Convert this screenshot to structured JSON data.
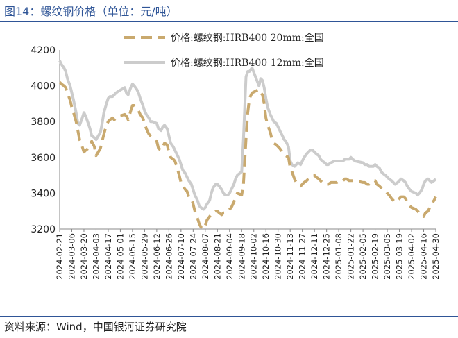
{
  "title": "图14：螺纹钢价格（单位：元/吨）",
  "source": "资料来源：Wind，中国银河证券研究院",
  "chart_data": {
    "type": "line",
    "ylim": [
      3200,
      4200
    ],
    "yticks": [
      3200,
      3400,
      3600,
      3800,
      4000,
      4200
    ],
    "xlim": [
      "2024-02-21",
      "2025-04-30"
    ],
    "xticks": [
      "2024-02-21",
      "2024-03-06",
      "2024-03-20",
      "2024-04-03",
      "2024-04-17",
      "2024-05-01",
      "2024-05-15",
      "2024-05-29",
      "2024-06-12",
      "2024-06-26",
      "2024-07-10",
      "2024-07-24",
      "2024-08-07",
      "2024-08-21",
      "2024-09-04",
      "2024-09-18",
      "2024-10-02",
      "2024-10-16",
      "2024-10-30",
      "2024-11-13",
      "2024-11-27",
      "2024-12-11",
      "2024-12-25",
      "2025-01-08",
      "2025-01-22",
      "2025-02-05",
      "2025-02-19",
      "2025-03-05",
      "2025-03-19",
      "2025-04-02",
      "2025-04-16",
      "2025-04-30"
    ],
    "legend_position": "top",
    "grid": false,
    "series": [
      {
        "name": "价格:螺纹钢:HRB400 20mm:全国",
        "color": "#c9a96e",
        "style": "dashed",
        "x": [
          "2024-02-21",
          "2024-02-23",
          "2024-02-26",
          "2024-02-28",
          "2024-03-01",
          "2024-03-04",
          "2024-03-06",
          "2024-03-08",
          "2024-03-11",
          "2024-03-13",
          "2024-03-15",
          "2024-03-18",
          "2024-03-20",
          "2024-03-22",
          "2024-03-25",
          "2024-03-27",
          "2024-03-29",
          "2024-04-01",
          "2024-04-03",
          "2024-04-08",
          "2024-04-10",
          "2024-04-12",
          "2024-04-15",
          "2024-04-17",
          "2024-04-19",
          "2024-04-22",
          "2024-04-24",
          "2024-04-26",
          "2024-04-29",
          "2024-05-06",
          "2024-05-08",
          "2024-05-10",
          "2024-05-13",
          "2024-05-15",
          "2024-05-17",
          "2024-05-20",
          "2024-05-22",
          "2024-05-24",
          "2024-05-27",
          "2024-05-29",
          "2024-05-31",
          "2024-06-03",
          "2024-06-05",
          "2024-06-07",
          "2024-06-12",
          "2024-06-14",
          "2024-06-17",
          "2024-06-19",
          "2024-06-21",
          "2024-06-24",
          "2024-06-26",
          "2024-06-28",
          "2024-07-01",
          "2024-07-03",
          "2024-07-05",
          "2024-07-08",
          "2024-07-10",
          "2024-07-12",
          "2024-07-15",
          "2024-07-17",
          "2024-07-19",
          "2024-07-22",
          "2024-07-24",
          "2024-07-26",
          "2024-07-29",
          "2024-07-31",
          "2024-08-02",
          "2024-08-05",
          "2024-08-07",
          "2024-08-09",
          "2024-08-12",
          "2024-08-14",
          "2024-08-16",
          "2024-08-19",
          "2024-08-21",
          "2024-08-23",
          "2024-08-26",
          "2024-08-28",
          "2024-08-30",
          "2024-09-02",
          "2024-09-04",
          "2024-09-06",
          "2024-09-09",
          "2024-09-11",
          "2024-09-13",
          "2024-09-18",
          "2024-09-20",
          "2024-09-23",
          "2024-09-25",
          "2024-09-27",
          "2024-09-30",
          "2024-10-08",
          "2024-10-10",
          "2024-10-12",
          "2024-10-14",
          "2024-10-16",
          "2024-10-18",
          "2024-10-21",
          "2024-10-23",
          "2024-10-25",
          "2024-10-28",
          "2024-10-30",
          "2024-11-01",
          "2024-11-04",
          "2024-11-06",
          "2024-11-08",
          "2024-11-11",
          "2024-11-13",
          "2024-11-15",
          "2024-11-18",
          "2024-11-20",
          "2024-11-22",
          "2024-11-25",
          "2024-11-27",
          "2024-11-29",
          "2024-12-02",
          "2024-12-04",
          "2024-12-06",
          "2024-12-09",
          "2024-12-11",
          "2024-12-13",
          "2024-12-16",
          "2024-12-18",
          "2024-12-20",
          "2024-12-23",
          "2024-12-25",
          "2024-12-27",
          "2024-12-30",
          "2025-01-03",
          "2025-01-06",
          "2025-01-08",
          "2025-01-10",
          "2025-01-13",
          "2025-01-15",
          "2025-01-17",
          "2025-01-20",
          "2025-01-22",
          "2025-01-24",
          "2025-01-27",
          "2025-02-05",
          "2025-02-07",
          "2025-02-10",
          "2025-02-12",
          "2025-02-14",
          "2025-02-17",
          "2025-02-19",
          "2025-02-21",
          "2025-02-24",
          "2025-02-26",
          "2025-02-28",
          "2025-03-03",
          "2025-03-05",
          "2025-03-07",
          "2025-03-10",
          "2025-03-12",
          "2025-03-14",
          "2025-03-17",
          "2025-03-19",
          "2025-03-21",
          "2025-03-24",
          "2025-03-26",
          "2025-03-28",
          "2025-03-31",
          "2025-04-02",
          "2025-04-07",
          "2025-04-09",
          "2025-04-11",
          "2025-04-14",
          "2025-04-16",
          "2025-04-18",
          "2025-04-21",
          "2025-04-23",
          "2025-04-25",
          "2025-04-28",
          "2025-04-30"
        ],
        "values": [
          4020,
          4010,
          4000,
          3990,
          3960,
          3920,
          3880,
          3850,
          3800,
          3750,
          3700,
          3660,
          3630,
          3640,
          3650,
          3680,
          3690,
          3660,
          3610,
          3650,
          3690,
          3730,
          3780,
          3800,
          3810,
          3820,
          3810,
          3820,
          3830,
          3840,
          3830,
          3810,
          3860,
          3890,
          3890,
          3870,
          3860,
          3840,
          3820,
          3790,
          3760,
          3730,
          3720,
          3710,
          3690,
          3650,
          3640,
          3660,
          3680,
          3670,
          3630,
          3600,
          3590,
          3580,
          3550,
          3500,
          3460,
          3440,
          3420,
          3410,
          3380,
          3370,
          3340,
          3300,
          3260,
          3230,
          3210,
          3200,
          3220,
          3250,
          3270,
          3280,
          3290,
          3300,
          3300,
          3290,
          3280,
          3290,
          3290,
          3300,
          3310,
          3320,
          3350,
          3380,
          3400,
          3390,
          3450,
          3700,
          3850,
          3930,
          3960,
          3980,
          3960,
          3950,
          3900,
          3820,
          3780,
          3740,
          3700,
          3680,
          3670,
          3660,
          3650,
          3630,
          3620,
          3610,
          3600,
          3540,
          3520,
          3480,
          3460,
          3450,
          3440,
          3450,
          3460,
          3470,
          3480,
          3490,
          3500,
          3500,
          3490,
          3480,
          3470,
          3460,
          3460,
          3450,
          3450,
          3460,
          3460,
          3460,
          3470,
          3470,
          3470,
          3480,
          3480,
          3470,
          3470,
          3470,
          3470,
          3460,
          3460,
          3450,
          3450,
          3460,
          3470,
          3470,
          3450,
          3440,
          3430,
          3420,
          3410,
          3400,
          3390,
          3370,
          3360,
          3350,
          3360,
          3370,
          3380,
          3380,
          3370,
          3350,
          3330,
          3320,
          3310,
          3300,
          3290,
          3280,
          3270,
          3290,
          3300,
          3320,
          3340,
          3360,
          3380
        ]
      },
      {
        "name": "价格:螺纹钢:HRB400 12mm:全国",
        "color": "#cccccc",
        "style": "solid",
        "x": [
          "2024-02-21",
          "2024-02-23",
          "2024-02-26",
          "2024-02-28",
          "2024-03-01",
          "2024-03-04",
          "2024-03-06",
          "2024-03-08",
          "2024-03-11",
          "2024-03-13",
          "2024-03-15",
          "2024-03-18",
          "2024-03-20",
          "2024-03-22",
          "2024-03-25",
          "2024-03-27",
          "2024-03-29",
          "2024-04-01",
          "2024-04-03",
          "2024-04-08",
          "2024-04-10",
          "2024-04-12",
          "2024-04-15",
          "2024-04-17",
          "2024-04-19",
          "2024-04-22",
          "2024-04-24",
          "2024-04-26",
          "2024-04-29",
          "2024-05-06",
          "2024-05-08",
          "2024-05-10",
          "2024-05-13",
          "2024-05-15",
          "2024-05-17",
          "2024-05-20",
          "2024-05-22",
          "2024-05-24",
          "2024-05-27",
          "2024-05-29",
          "2024-05-31",
          "2024-06-03",
          "2024-06-05",
          "2024-06-07",
          "2024-06-12",
          "2024-06-14",
          "2024-06-17",
          "2024-06-19",
          "2024-06-21",
          "2024-06-24",
          "2024-06-26",
          "2024-06-28",
          "2024-07-01",
          "2024-07-03",
          "2024-07-05",
          "2024-07-08",
          "2024-07-10",
          "2024-07-12",
          "2024-07-15",
          "2024-07-17",
          "2024-07-19",
          "2024-07-22",
          "2024-07-24",
          "2024-07-26",
          "2024-07-29",
          "2024-07-31",
          "2024-08-02",
          "2024-08-05",
          "2024-08-07",
          "2024-08-09",
          "2024-08-12",
          "2024-08-14",
          "2024-08-16",
          "2024-08-19",
          "2024-08-21",
          "2024-08-23",
          "2024-08-26",
          "2024-08-28",
          "2024-08-30",
          "2024-09-02",
          "2024-09-04",
          "2024-09-06",
          "2024-09-09",
          "2024-09-11",
          "2024-09-13",
          "2024-09-18",
          "2024-09-20",
          "2024-09-23",
          "2024-09-25",
          "2024-09-27",
          "2024-09-30",
          "2024-10-08",
          "2024-10-10",
          "2024-10-12",
          "2024-10-14",
          "2024-10-16",
          "2024-10-18",
          "2024-10-21",
          "2024-10-23",
          "2024-10-25",
          "2024-10-28",
          "2024-10-30",
          "2024-11-01",
          "2024-11-04",
          "2024-11-06",
          "2024-11-08",
          "2024-11-11",
          "2024-11-13",
          "2024-11-15",
          "2024-11-18",
          "2024-11-20",
          "2024-11-22",
          "2024-11-25",
          "2024-11-27",
          "2024-11-29",
          "2024-12-02",
          "2024-12-04",
          "2024-12-06",
          "2024-12-09",
          "2024-12-11",
          "2024-12-13",
          "2024-12-16",
          "2024-12-18",
          "2024-12-20",
          "2024-12-23",
          "2024-12-25",
          "2024-12-27",
          "2024-12-30",
          "2025-01-03",
          "2025-01-06",
          "2025-01-08",
          "2025-01-10",
          "2025-01-13",
          "2025-01-15",
          "2025-01-17",
          "2025-01-20",
          "2025-01-22",
          "2025-01-24",
          "2025-01-27",
          "2025-02-05",
          "2025-02-07",
          "2025-02-10",
          "2025-02-12",
          "2025-02-14",
          "2025-02-17",
          "2025-02-19",
          "2025-02-21",
          "2025-02-24",
          "2025-02-26",
          "2025-02-28",
          "2025-03-03",
          "2025-03-05",
          "2025-03-07",
          "2025-03-10",
          "2025-03-12",
          "2025-03-14",
          "2025-03-17",
          "2025-03-19",
          "2025-03-21",
          "2025-03-24",
          "2025-03-26",
          "2025-03-28",
          "2025-03-31",
          "2025-04-02",
          "2025-04-07",
          "2025-04-09",
          "2025-04-11",
          "2025-04-14",
          "2025-04-16",
          "2025-04-18",
          "2025-04-21",
          "2025-04-23",
          "2025-04-25",
          "2025-04-28",
          "2025-04-30"
        ],
        "values": [
          4140,
          4120,
          4100,
          4080,
          4040,
          4000,
          3960,
          3920,
          3850,
          3790,
          3780,
          3820,
          3850,
          3830,
          3790,
          3760,
          3720,
          3710,
          3700,
          3740,
          3790,
          3850,
          3900,
          3930,
          3940,
          3940,
          3950,
          3960,
          3970,
          3990,
          3960,
          3950,
          3990,
          4010,
          4000,
          3980,
          3960,
          3930,
          3890,
          3860,
          3840,
          3820,
          3800,
          3800,
          3790,
          3760,
          3750,
          3770,
          3780,
          3760,
          3720,
          3680,
          3660,
          3640,
          3620,
          3590,
          3560,
          3530,
          3510,
          3490,
          3470,
          3450,
          3420,
          3390,
          3360,
          3330,
          3320,
          3310,
          3320,
          3340,
          3360,
          3400,
          3430,
          3450,
          3450,
          3440,
          3420,
          3400,
          3390,
          3390,
          3400,
          3420,
          3450,
          3480,
          3500,
          3520,
          3700,
          4050,
          4080,
          4080,
          4100,
          4000,
          4040,
          4030,
          3990,
          3930,
          3880,
          3840,
          3820,
          3800,
          3790,
          3770,
          3750,
          3720,
          3700,
          3690,
          3660,
          3580,
          3560,
          3550,
          3560,
          3570,
          3560,
          3580,
          3600,
          3620,
          3630,
          3640,
          3640,
          3630,
          3620,
          3610,
          3590,
          3580,
          3570,
          3560,
          3560,
          3570,
          3580,
          3580,
          3580,
          3580,
          3580,
          3590,
          3590,
          3590,
          3600,
          3590,
          3580,
          3570,
          3560,
          3560,
          3550,
          3550,
          3550,
          3560,
          3550,
          3540,
          3520,
          3510,
          3500,
          3490,
          3480,
          3470,
          3460,
          3450,
          3460,
          3470,
          3480,
          3470,
          3460,
          3440,
          3420,
          3410,
          3400,
          3390,
          3400,
          3420,
          3450,
          3470,
          3480,
          3470,
          3460,
          3470,
          3480
        ]
      }
    ]
  }
}
